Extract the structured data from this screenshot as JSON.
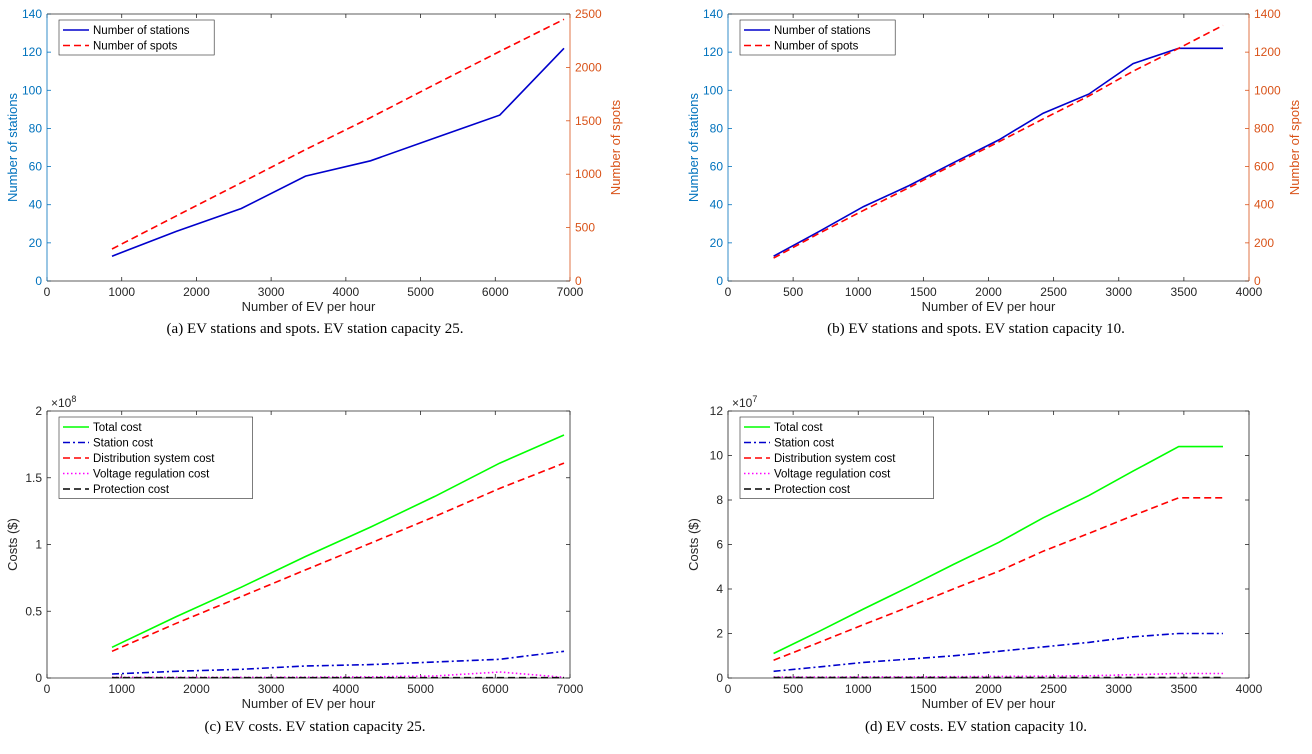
{
  "chart_data": [
    {
      "type": "line",
      "caption": "(a) EV stations and spots. EV station capacity 25.",
      "xlabel": "Number of EV per hour",
      "xlim": [
        0,
        7000
      ],
      "xticks": [
        0,
        1000,
        2000,
        3000,
        4000,
        5000,
        6000,
        7000
      ],
      "y_left": {
        "label": "Number of stations",
        "lim": [
          0,
          140
        ],
        "ticks": [
          0,
          20,
          40,
          60,
          80,
          100,
          120,
          140
        ],
        "color": "#0072BD"
      },
      "y_right": {
        "label": "Number of spots",
        "lim": [
          0,
          2500
        ],
        "ticks": [
          0,
          500,
          1000,
          1500,
          2000,
          2500
        ],
        "color": "#D95319"
      },
      "legend": "top-left",
      "series": [
        {
          "name": "Number of stations",
          "axis": "left",
          "color": "#0000CC",
          "dash": "solid",
          "x": [
            870,
            1730,
            2600,
            3460,
            4330,
            5190,
            6060,
            6920
          ],
          "y": [
            13,
            26,
            38,
            55,
            63,
            75,
            87,
            122
          ]
        },
        {
          "name": "Number of spots",
          "axis": "right",
          "color": "#FF0000",
          "dash": "dashed",
          "x": [
            870,
            1730,
            2600,
            3460,
            4330,
            5190,
            6060,
            6920
          ],
          "y": [
            300,
            610,
            920,
            1230,
            1530,
            1840,
            2150,
            2450
          ]
        }
      ]
    },
    {
      "type": "line",
      "caption": "(b) EV stations and spots. EV station capacity 10.",
      "xlabel": "Number of EV per hour",
      "xlim": [
        0,
        4000
      ],
      "xticks": [
        0,
        500,
        1000,
        1500,
        2000,
        2500,
        3000,
        3500,
        4000
      ],
      "y_left": {
        "label": "Number of stations",
        "lim": [
          0,
          140
        ],
        "ticks": [
          0,
          20,
          40,
          60,
          80,
          100,
          120,
          140
        ],
        "color": "#0072BD"
      },
      "y_right": {
        "label": "Number of spots",
        "lim": [
          0,
          1400
        ],
        "ticks": [
          0,
          200,
          400,
          600,
          800,
          1000,
          1200,
          1400
        ],
        "color": "#D95319"
      },
      "legend": "top-left",
      "series": [
        {
          "name": "Number of stations",
          "axis": "left",
          "color": "#0000CC",
          "dash": "solid",
          "x": [
            350,
            700,
            1040,
            1390,
            1730,
            2080,
            2420,
            2770,
            3110,
            3460,
            3800
          ],
          "y": [
            13,
            26,
            39,
            50,
            62,
            74,
            88,
            98,
            114,
            122,
            122
          ]
        },
        {
          "name": "Number of spots",
          "axis": "right",
          "color": "#FF0000",
          "dash": "dashed",
          "x": [
            350,
            700,
            1040,
            1390,
            1730,
            2080,
            2420,
            2770,
            3110,
            3460,
            3800
          ],
          "y": [
            120,
            250,
            370,
            490,
            610,
            730,
            850,
            970,
            1100,
            1220,
            1340
          ]
        }
      ]
    },
    {
      "type": "line",
      "caption": "(c) EV costs. EV station capacity 25.",
      "xlabel": "Number of EV per hour",
      "ylabel": "Costs ($)",
      "exponent_label": "×10",
      "exponent_power": "8",
      "xlim": [
        0,
        7000
      ],
      "xticks": [
        0,
        1000,
        2000,
        3000,
        4000,
        5000,
        6000,
        7000
      ],
      "ylim": [
        0,
        2
      ],
      "yticks": [
        0,
        0.5,
        1,
        1.5,
        2
      ],
      "ytick_labels": [
        "0",
        "0.5",
        "1",
        "1.5",
        "2"
      ],
      "legend": "top-left",
      "series": [
        {
          "name": "Total cost",
          "color": "#00FF00",
          "dash": "solid",
          "x": [
            870,
            1730,
            2600,
            3460,
            4330,
            5190,
            6060,
            6920
          ],
          "y": [
            0.23,
            0.46,
            0.68,
            0.91,
            1.13,
            1.36,
            1.61,
            1.82
          ]
        },
        {
          "name": "Station cost",
          "color": "#0000CC",
          "dash": "dashdot",
          "x": [
            870,
            1730,
            2600,
            3460,
            4330,
            5190,
            6060,
            6920
          ],
          "y": [
            0.03,
            0.05,
            0.065,
            0.09,
            0.1,
            0.12,
            0.14,
            0.2
          ]
        },
        {
          "name": "Distribution system cost",
          "color": "#FF0000",
          "dash": "dashed",
          "x": [
            870,
            1730,
            2600,
            3460,
            4330,
            5190,
            6060,
            6920
          ],
          "y": [
            0.2,
            0.41,
            0.61,
            0.81,
            1.01,
            1.21,
            1.42,
            1.61
          ]
        },
        {
          "name": "Voltage regulation cost",
          "color": "#FF00FF",
          "dash": "dotted",
          "x": [
            870,
            1730,
            2600,
            3460,
            4330,
            5190,
            6060,
            6920
          ],
          "y": [
            0.005,
            0.005,
            0.005,
            0.006,
            0.008,
            0.015,
            0.045,
            0.005
          ]
        },
        {
          "name": "Protection cost",
          "color": "#000000",
          "dash": "dashed",
          "x": [
            870,
            1730,
            2600,
            3460,
            4330,
            5190,
            6060,
            6920
          ],
          "y": [
            0.002,
            0.002,
            0.002,
            0.002,
            0.002,
            0.002,
            0.002,
            0.002
          ]
        }
      ]
    },
    {
      "type": "line",
      "caption": "(d) EV costs. EV station capacity 10.",
      "xlabel": "Number of EV per hour",
      "ylabel": "Costs ($)",
      "exponent_label": "×10",
      "exponent_power": "7",
      "xlim": [
        0,
        4000
      ],
      "xticks": [
        0,
        500,
        1000,
        1500,
        2000,
        2500,
        3000,
        3500,
        4000
      ],
      "ylim": [
        0,
        12
      ],
      "yticks": [
        0,
        2,
        4,
        6,
        8,
        10,
        12
      ],
      "ytick_labels": [
        "0",
        "2",
        "4",
        "6",
        "8",
        "10",
        "12"
      ],
      "legend": "top-left",
      "series": [
        {
          "name": "Total cost",
          "color": "#00FF00",
          "dash": "solid",
          "x": [
            350,
            700,
            1040,
            1390,
            1730,
            2080,
            2420,
            2770,
            3110,
            3460,
            3800
          ],
          "y": [
            1.1,
            2.1,
            3.1,
            4.1,
            5.1,
            6.1,
            7.2,
            8.2,
            9.3,
            10.4,
            10.4
          ]
        },
        {
          "name": "Station cost",
          "color": "#0000CC",
          "dash": "dashdot",
          "x": [
            350,
            700,
            1040,
            1390,
            1730,
            2080,
            2420,
            2770,
            3110,
            3460,
            3800
          ],
          "y": [
            0.3,
            0.5,
            0.7,
            0.85,
            1.0,
            1.2,
            1.4,
            1.6,
            1.85,
            2.0,
            2.0
          ]
        },
        {
          "name": "Distribution system cost",
          "color": "#FF0000",
          "dash": "dashed",
          "x": [
            350,
            700,
            1040,
            1390,
            1730,
            2080,
            2420,
            2770,
            3110,
            3460,
            3800
          ],
          "y": [
            0.8,
            1.6,
            2.4,
            3.2,
            4.0,
            4.8,
            5.7,
            6.5,
            7.3,
            8.1,
            8.1
          ]
        },
        {
          "name": "Voltage regulation cost",
          "color": "#FF00FF",
          "dash": "dotted",
          "x": [
            350,
            700,
            1040,
            1390,
            1730,
            2080,
            2420,
            2770,
            3110,
            3460,
            3800
          ],
          "y": [
            0.04,
            0.04,
            0.05,
            0.05,
            0.06,
            0.07,
            0.08,
            0.1,
            0.15,
            0.2,
            0.2
          ]
        },
        {
          "name": "Protection cost",
          "color": "#000000",
          "dash": "dashed",
          "x": [
            350,
            700,
            1040,
            1390,
            1730,
            2080,
            2420,
            2770,
            3110,
            3460,
            3800
          ],
          "y": [
            0.02,
            0.02,
            0.02,
            0.02,
            0.02,
            0.02,
            0.02,
            0.02,
            0.02,
            0.02,
            0.02
          ]
        }
      ]
    }
  ]
}
